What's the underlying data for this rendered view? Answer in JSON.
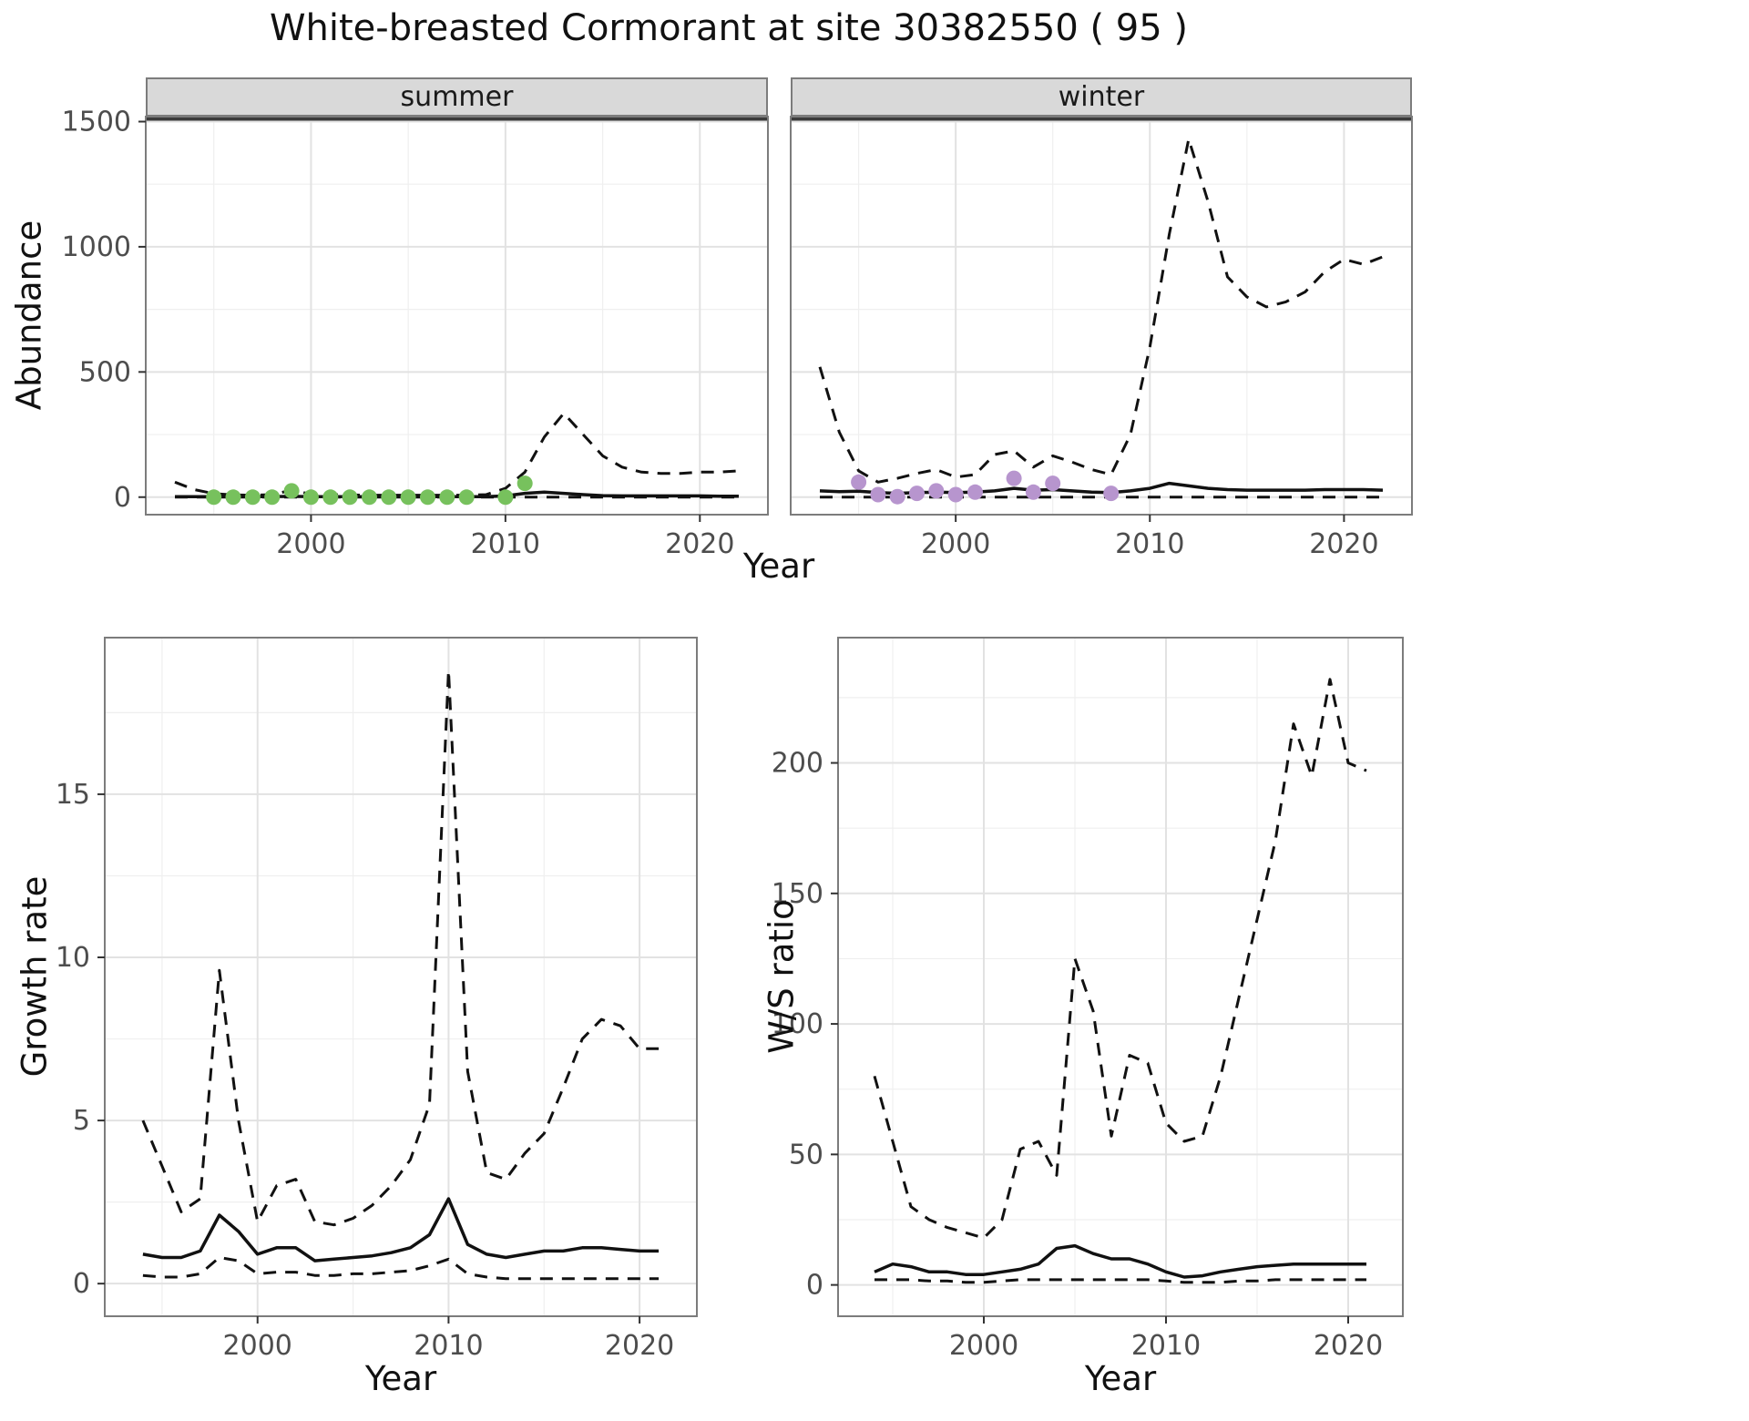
{
  "title": "White-breasted Cormorant at site 30382550 ( 95 )",
  "style": {
    "strip_background": "#d9d9d9",
    "panel_border": "#7c7c7c",
    "major_grid": "#e2e2e2",
    "minor_grid": "#efefef",
    "line_color": "#111111",
    "tick_label_color": "#4d4d4d",
    "summer_point_color": "#77c15d",
    "winter_point_color": "#b795ce"
  },
  "chart_data": [
    {
      "id": "abundance_summer",
      "type": "line",
      "facet_label": "summer",
      "xlabel": "Year",
      "ylabel": "Abundance",
      "xlim": [
        1991.5,
        2023.5
      ],
      "ylim": [
        0,
        1500
      ],
      "xticks": [
        2000,
        2010,
        2020
      ],
      "yticks": [
        0,
        500,
        1000,
        1500
      ],
      "x": [
        1993,
        1994,
        1995,
        1996,
        1997,
        1998,
        1999,
        2000,
        2001,
        2002,
        2003,
        2004,
        2005,
        2006,
        2007,
        2008,
        2009,
        2010,
        2011,
        2012,
        2013,
        2014,
        2015,
        2016,
        2017,
        2018,
        2019,
        2020,
        2021,
        2022
      ],
      "series": [
        {
          "name": "mean",
          "style": "solid",
          "values": [
            2,
            2,
            2,
            2,
            2,
            2,
            3,
            2,
            2,
            2,
            2,
            2,
            2,
            2,
            2,
            2,
            2,
            5,
            15,
            20,
            15,
            10,
            6,
            5,
            5,
            5,
            5,
            5,
            4,
            4
          ]
        },
        {
          "name": "upper_ci",
          "style": "dashed",
          "values": [
            60,
            30,
            14,
            9,
            8,
            10,
            28,
            12,
            10,
            9,
            8,
            8,
            8,
            8,
            8,
            8,
            10,
            35,
            100,
            240,
            335,
            250,
            165,
            120,
            100,
            95,
            95,
            100,
            100,
            105
          ]
        },
        {
          "name": "lower_ci",
          "style": "dashed",
          "values": [
            0,
            0,
            0,
            0,
            0,
            0,
            0,
            0,
            0,
            0,
            0,
            0,
            0,
            0,
            0,
            0,
            0,
            0,
            0,
            0,
            0,
            0,
            0,
            0,
            0,
            0,
            0,
            0,
            0,
            0
          ]
        }
      ],
      "points": {
        "name": "observed_counts_summer",
        "color": "#77c15d",
        "x": [
          1995,
          1996,
          1997,
          1998,
          1999,
          2000,
          2001,
          2002,
          2003,
          2004,
          2005,
          2006,
          2007,
          2008,
          2010,
          2011
        ],
        "y": [
          0,
          0,
          0,
          0,
          25,
          0,
          0,
          0,
          0,
          0,
          0,
          0,
          0,
          0,
          0,
          55
        ]
      }
    },
    {
      "id": "abundance_winter",
      "type": "line",
      "facet_label": "winter",
      "xlabel": "Year",
      "ylabel": "Abundance",
      "xlim": [
        1991.5,
        2023.5
      ],
      "ylim": [
        0,
        1500
      ],
      "xticks": [
        2000,
        2010,
        2020
      ],
      "yticks": [
        0,
        500,
        1000,
        1500
      ],
      "x": [
        1993,
        1994,
        1995,
        1996,
        1997,
        1998,
        1999,
        2000,
        2001,
        2002,
        2003,
        2004,
        2005,
        2006,
        2007,
        2008,
        2009,
        2010,
        2011,
        2012,
        2013,
        2014,
        2015,
        2016,
        2017,
        2018,
        2019,
        2020,
        2021,
        2022
      ],
      "series": [
        {
          "name": "mean",
          "style": "solid",
          "values": [
            25,
            22,
            24,
            18,
            15,
            18,
            20,
            18,
            20,
            25,
            35,
            28,
            30,
            25,
            20,
            18,
            25,
            35,
            55,
            45,
            35,
            30,
            28,
            28,
            28,
            28,
            30,
            30,
            30,
            28
          ]
        },
        {
          "name": "upper_ci",
          "style": "dashed",
          "values": [
            520,
            260,
            105,
            60,
            75,
            95,
            110,
            80,
            90,
            170,
            185,
            120,
            165,
            140,
            110,
            90,
            250,
            600,
            1050,
            1430,
            1180,
            880,
            800,
            760,
            780,
            820,
            900,
            950,
            930,
            960
          ]
        },
        {
          "name": "lower_ci",
          "style": "dashed",
          "values": [
            0,
            0,
            0,
            0,
            0,
            0,
            0,
            0,
            0,
            0,
            0,
            0,
            0,
            0,
            0,
            0,
            0,
            0,
            0,
            0,
            0,
            0,
            0,
            0,
            0,
            0,
            0,
            0,
            0,
            0
          ]
        }
      ],
      "points": {
        "name": "observed_counts_winter",
        "color": "#b795ce",
        "x": [
          1995,
          1996,
          1997,
          1998,
          1999,
          2000,
          2001,
          2003,
          2004,
          2005,
          2008
        ],
        "y": [
          60,
          10,
          2,
          15,
          25,
          10,
          20,
          75,
          20,
          55,
          15
        ]
      }
    },
    {
      "id": "growth_rate",
      "type": "line",
      "xlabel": "Year",
      "ylabel": "Growth rate",
      "xlim": [
        1992,
        2023
      ],
      "ylim": [
        0,
        18.8
      ],
      "xticks": [
        2000,
        2010,
        2020
      ],
      "yticks": [
        0,
        5,
        10,
        15
      ],
      "x": [
        1994,
        1995,
        1996,
        1997,
        1998,
        1999,
        2000,
        2001,
        2002,
        2003,
        2004,
        2005,
        2006,
        2007,
        2008,
        2009,
        2010,
        2011,
        2012,
        2013,
        2014,
        2015,
        2016,
        2017,
        2018,
        2019,
        2020,
        2021
      ],
      "series": [
        {
          "name": "mean",
          "style": "solid",
          "values": [
            0.9,
            0.8,
            0.8,
            1.0,
            2.1,
            1.6,
            0.9,
            1.1,
            1.1,
            0.7,
            0.75,
            0.8,
            0.85,
            0.95,
            1.1,
            1.5,
            2.6,
            1.2,
            0.9,
            0.8,
            0.9,
            1.0,
            1.0,
            1.1,
            1.1,
            1.05,
            1.0,
            1.0
          ]
        },
        {
          "name": "upper_ci",
          "style": "dashed",
          "values": [
            5.0,
            3.6,
            2.2,
            2.6,
            9.6,
            5.0,
            1.9,
            3.0,
            3.2,
            1.9,
            1.8,
            2.0,
            2.4,
            3.0,
            3.8,
            5.5,
            18.8,
            6.5,
            3.4,
            3.2,
            4.0,
            4.6,
            6.0,
            7.5,
            8.1,
            7.9,
            7.2,
            7.2
          ]
        },
        {
          "name": "lower_ci",
          "style": "dashed",
          "values": [
            0.25,
            0.2,
            0.2,
            0.3,
            0.8,
            0.7,
            0.3,
            0.35,
            0.35,
            0.25,
            0.25,
            0.3,
            0.3,
            0.35,
            0.4,
            0.55,
            0.75,
            0.3,
            0.2,
            0.15,
            0.15,
            0.15,
            0.15,
            0.15,
            0.15,
            0.15,
            0.15,
            0.15
          ]
        }
      ]
    },
    {
      "id": "ws_ratio",
      "type": "line",
      "xlabel": "Year",
      "ylabel": "W/S ratio",
      "xlim": [
        1992,
        2023
      ],
      "ylim": [
        0,
        235
      ],
      "xticks": [
        2000,
        2010,
        2020
      ],
      "yticks": [
        0,
        50,
        100,
        150,
        200
      ],
      "x": [
        1994,
        1995,
        1996,
        1997,
        1998,
        1999,
        2000,
        2001,
        2002,
        2003,
        2004,
        2005,
        2006,
        2007,
        2008,
        2009,
        2010,
        2011,
        2012,
        2013,
        2014,
        2015,
        2016,
        2017,
        2018,
        2019,
        2020,
        2021
      ],
      "series": [
        {
          "name": "mean",
          "style": "solid",
          "values": [
            5,
            8,
            7,
            5,
            5,
            4,
            4,
            5,
            6,
            8,
            14,
            15,
            12,
            10,
            10,
            8,
            5,
            3,
            3.5,
            5,
            6,
            7,
            7.5,
            8,
            8,
            8,
            8,
            8
          ]
        },
        {
          "name": "upper_ci",
          "style": "dashed",
          "values": [
            80,
            55,
            30,
            25,
            22,
            20,
            18,
            25,
            52,
            55,
            42,
            125,
            105,
            57,
            88,
            85,
            62,
            55,
            57,
            80,
            110,
            140,
            170,
            215,
            195,
            232,
            200,
            197
          ]
        },
        {
          "name": "lower_ci",
          "style": "dashed",
          "values": [
            2,
            2,
            2,
            1.5,
            1.5,
            1,
            1,
            1.5,
            2,
            2,
            2,
            2,
            2,
            2,
            2,
            2,
            1.5,
            1,
            1,
            1,
            1.5,
            1.5,
            2,
            2,
            2,
            2,
            2,
            2
          ]
        }
      ]
    }
  ]
}
